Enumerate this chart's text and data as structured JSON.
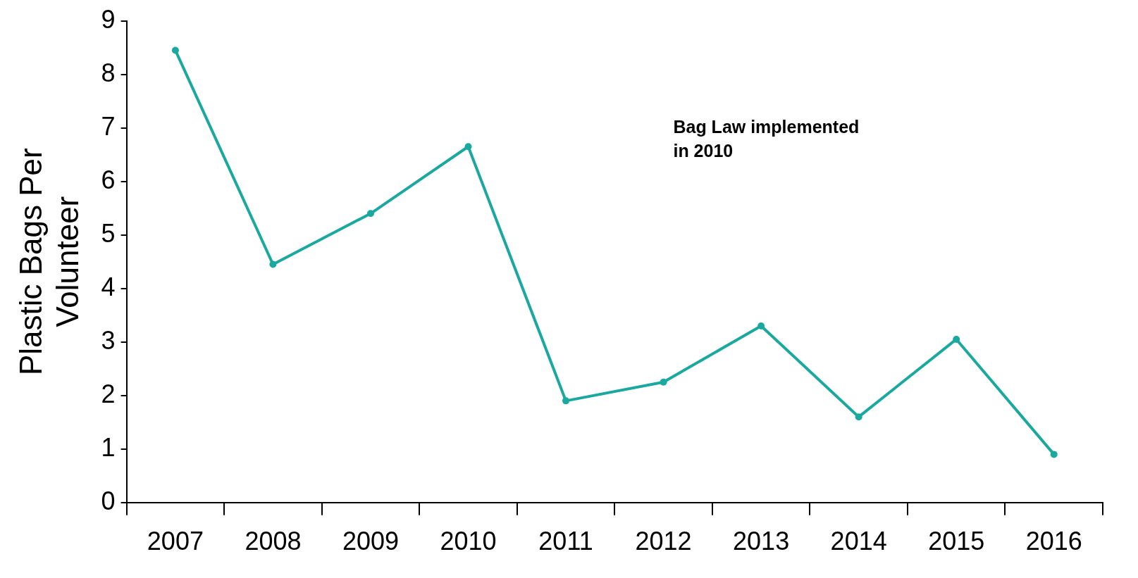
{
  "chart_data": {
    "type": "line",
    "ylabel": "Plastic Bags Per Volunteer",
    "categories": [
      "2007",
      "2008",
      "2009",
      "2010",
      "2011",
      "2012",
      "2013",
      "2014",
      "2015",
      "2016"
    ],
    "series": [
      {
        "color": "#1aa89f",
        "values": [
          8.45,
          4.45,
          5.4,
          6.65,
          1.9,
          2.25,
          3.3,
          1.6,
          3.05,
          0.9
        ]
      }
    ],
    "ylim": [
      0,
      9
    ],
    "yticks": [
      0,
      1,
      2,
      3,
      4,
      5,
      6,
      7,
      8,
      9
    ],
    "grid": false,
    "legend": false,
    "marker": "circle",
    "line_style": "solid",
    "annotations": [
      {
        "text": "Bag Law implemented in 2010"
      }
    ]
  }
}
